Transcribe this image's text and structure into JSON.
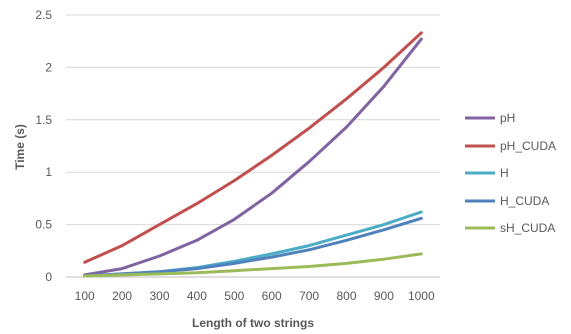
{
  "chart_data": {
    "type": "line",
    "title": "",
    "xlabel": "Length of two strings",
    "ylabel": "Time (s)",
    "x": [
      100,
      200,
      300,
      400,
      500,
      600,
      700,
      800,
      900,
      1000
    ],
    "x_tick_labels": [
      "100",
      "200",
      "300",
      "400",
      "500",
      "600",
      "700",
      "800",
      "900",
      "1000"
    ],
    "y_tick_labels": [
      "0",
      "0.5",
      "1",
      "1.5",
      "2",
      "2.5"
    ],
    "ylim": [
      0,
      2.5
    ],
    "grid": "horizontal",
    "legend_position": "right",
    "series": [
      {
        "name": "pH",
        "color": "#8064A2",
        "values": [
          0.02,
          0.08,
          0.2,
          0.35,
          0.55,
          0.8,
          1.1,
          1.43,
          1.82,
          2.27
        ]
      },
      {
        "name": "pH_CUDA",
        "color": "#C0504D",
        "values": [
          0.14,
          0.3,
          0.5,
          0.7,
          0.92,
          1.16,
          1.42,
          1.7,
          2.0,
          2.33
        ]
      },
      {
        "name": "H",
        "color": "#4BACC6",
        "values": [
          0.01,
          0.03,
          0.05,
          0.09,
          0.15,
          0.22,
          0.3,
          0.4,
          0.5,
          0.62
        ]
      },
      {
        "name": "H_CUDA",
        "color": "#4F81BD",
        "values": [
          0.01,
          0.03,
          0.05,
          0.08,
          0.13,
          0.19,
          0.26,
          0.35,
          0.45,
          0.56
        ]
      },
      {
        "name": "sH_CUDA",
        "color": "#9BBB59",
        "values": [
          0.01,
          0.02,
          0.03,
          0.04,
          0.06,
          0.08,
          0.1,
          0.13,
          0.17,
          0.22
        ]
      }
    ]
  }
}
